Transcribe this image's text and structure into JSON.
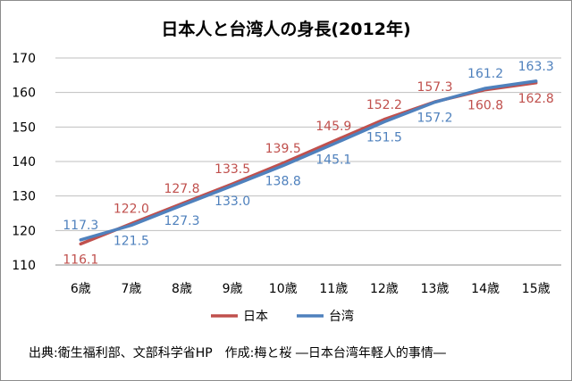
{
  "chart_data": {
    "type": "line",
    "title": "日本人と台湾人の身長(2012年)",
    "categories": [
      "6歳",
      "7歳",
      "8歳",
      "9歳",
      "10歳",
      "11歳",
      "12歳",
      "13歳",
      "14歳",
      "15歳"
    ],
    "series": [
      {
        "name": "日本",
        "color": "#c0504d",
        "values": [
          116.1,
          122.0,
          127.8,
          133.5,
          139.5,
          145.9,
          152.2,
          157.3,
          160.8,
          162.8
        ],
        "labels": [
          "116.1",
          "122.0",
          "127.8",
          "133.5",
          "139.5",
          "145.9",
          "152.2",
          "157.3",
          "160.8",
          "162.8"
        ]
      },
      {
        "name": "台湾",
        "color": "#4f81bd",
        "values": [
          117.3,
          121.5,
          127.3,
          133.0,
          138.8,
          145.1,
          151.5,
          157.2,
          161.2,
          163.3
        ],
        "labels": [
          "117.3",
          "121.5",
          "127.3",
          "133.0",
          "138.8",
          "145.1",
          "151.5",
          "157.2",
          "161.2",
          "163.3"
        ]
      }
    ],
    "ylim": [
      110,
      170
    ],
    "yticks": [
      "110",
      "120",
      "130",
      "140",
      "150",
      "160",
      "170"
    ],
    "grid": true,
    "legend_position": "bottom",
    "source": "出典:衛生福利部、文部科学省HP　作成:梅と桜 ―日本台湾年軽人的事情―"
  }
}
